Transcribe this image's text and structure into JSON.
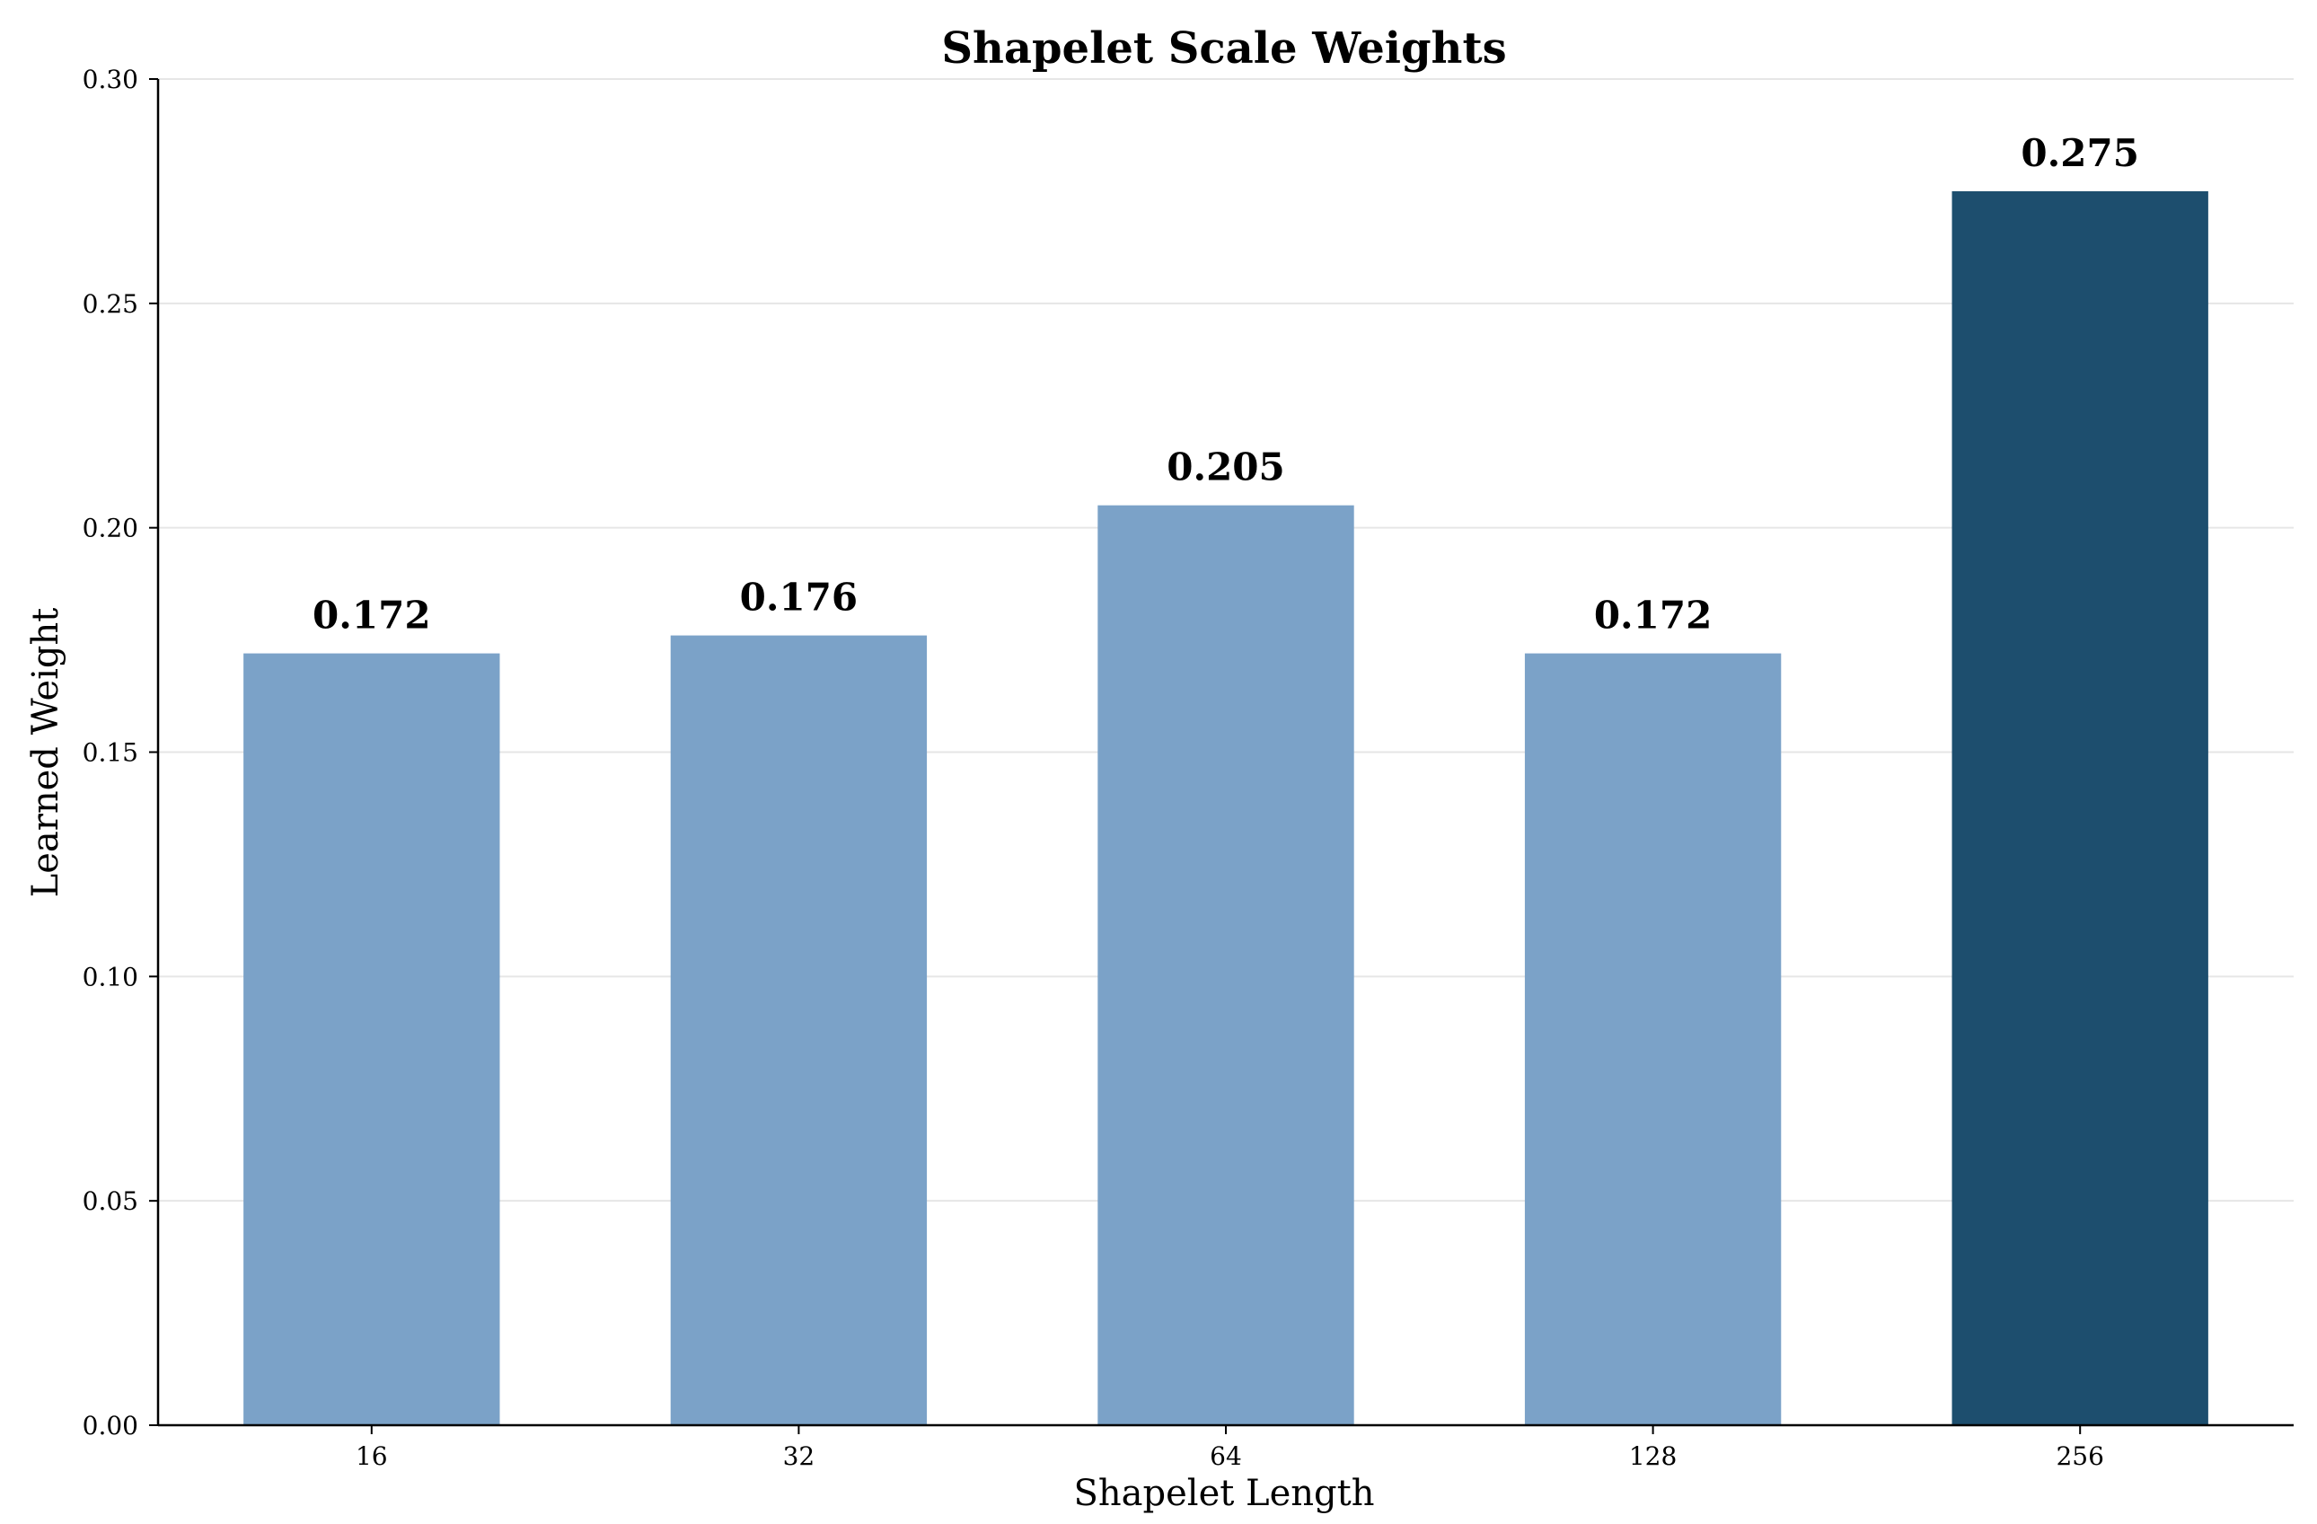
{
  "chart_data": {
    "type": "bar",
    "title": "Shapelet Scale Weights",
    "xlabel": "Shapelet Length",
    "ylabel": "Learned Weight",
    "categories": [
      "16",
      "32",
      "64",
      "128",
      "256"
    ],
    "values": [
      0.172,
      0.176,
      0.205,
      0.172,
      0.275
    ],
    "value_labels": [
      "0.172",
      "0.176",
      "0.205",
      "0.172",
      "0.275"
    ],
    "ylim": [
      0,
      0.3
    ],
    "yticks": [
      0.0,
      0.05,
      0.1,
      0.15,
      0.2,
      0.25,
      0.3
    ],
    "ytick_labels": [
      "0.00",
      "0.05",
      "0.10",
      "0.15",
      "0.20",
      "0.25",
      "0.30"
    ],
    "grid": "horizontal",
    "colors": {
      "default_bar": "#7ba2c8",
      "highlight_bar": "#1d4e6e"
    },
    "highlight_index": 4
  }
}
